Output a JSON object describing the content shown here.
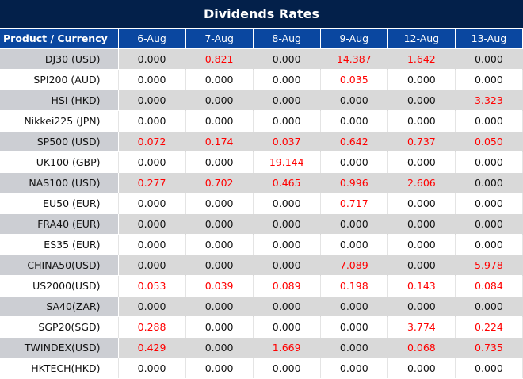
{
  "title": "Dividends Rates",
  "columns": [
    "Product / Currency",
    "6-Aug",
    "7-Aug",
    "8-Aug",
    "9-Aug",
    "12-Aug",
    "13-Aug"
  ],
  "colors": {
    "title_bg": "#03204a",
    "header_bg": "#0a47a0",
    "positive": "#ff0000"
  },
  "rows": [
    {
      "product": "DJ30 (USD)",
      "values": [
        "0.000",
        "0.821",
        "0.000",
        "14.387",
        "1.642",
        "0.000"
      ]
    },
    {
      "product": "SPI200 (AUD)",
      "values": [
        "0.000",
        "0.000",
        "0.000",
        "0.035",
        "0.000",
        "0.000"
      ]
    },
    {
      "product": "HSI (HKD)",
      "values": [
        "0.000",
        "0.000",
        "0.000",
        "0.000",
        "0.000",
        "3.323"
      ]
    },
    {
      "product": "Nikkei225 (JPN)",
      "values": [
        "0.000",
        "0.000",
        "0.000",
        "0.000",
        "0.000",
        "0.000"
      ]
    },
    {
      "product": "SP500 (USD)",
      "values": [
        "0.072",
        "0.174",
        "0.037",
        "0.642",
        "0.737",
        "0.050"
      ]
    },
    {
      "product": "UK100 (GBP)",
      "values": [
        "0.000",
        "0.000",
        "19.144",
        "0.000",
        "0.000",
        "0.000"
      ]
    },
    {
      "product": "NAS100 (USD)",
      "values": [
        "0.277",
        "0.702",
        "0.465",
        "0.996",
        "2.606",
        "0.000"
      ]
    },
    {
      "product": "EU50 (EUR)",
      "values": [
        "0.000",
        "0.000",
        "0.000",
        "0.717",
        "0.000",
        "0.000"
      ]
    },
    {
      "product": "FRA40 (EUR)",
      "values": [
        "0.000",
        "0.000",
        "0.000",
        "0.000",
        "0.000",
        "0.000"
      ]
    },
    {
      "product": "ES35 (EUR)",
      "values": [
        "0.000",
        "0.000",
        "0.000",
        "0.000",
        "0.000",
        "0.000"
      ]
    },
    {
      "product": "CHINA50(USD)",
      "values": [
        "0.000",
        "0.000",
        "0.000",
        "7.089",
        "0.000",
        "5.978"
      ]
    },
    {
      "product": "US2000(USD)",
      "values": [
        "0.053",
        "0.039",
        "0.089",
        "0.198",
        "0.143",
        "0.084"
      ]
    },
    {
      "product": "SA40(ZAR)",
      "values": [
        "0.000",
        "0.000",
        "0.000",
        "0.000",
        "0.000",
        "0.000"
      ]
    },
    {
      "product": "SGP20(SGD)",
      "values": [
        "0.288",
        "0.000",
        "0.000",
        "0.000",
        "3.774",
        "0.224"
      ]
    },
    {
      "product": "TWINDEX(USD)",
      "values": [
        "0.429",
        "0.000",
        "1.669",
        "0.000",
        "0.068",
        "0.735"
      ]
    },
    {
      "product": "HKTECH(HKD)",
      "values": [
        "0.000",
        "0.000",
        "0.000",
        "0.000",
        "0.000",
        "0.000"
      ]
    }
  ]
}
